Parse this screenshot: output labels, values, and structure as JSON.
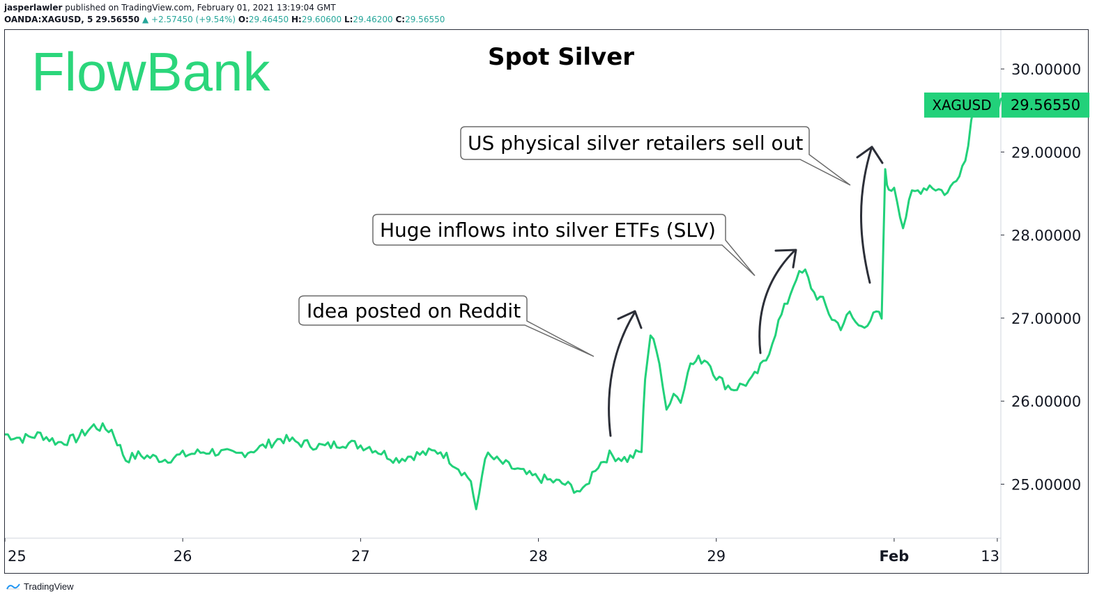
{
  "header": {
    "author": "jasperlawler",
    "published": "published on TradingView.com, February 01, 2021 13:19:04 GMT",
    "symbol": "OANDA:XAGUSD, 5",
    "last": "29.56550",
    "change": "+2.57450 (+9.54%)",
    "o_label": "O:",
    "o_value": "29.46450",
    "h_label": "H:",
    "h_value": "29.60600",
    "l_label": "L:",
    "l_value": "29.46200",
    "c_label": "C:",
    "c_value": "29.56550"
  },
  "brand": {
    "logo_text": "FlowBank",
    "logo_color": "#2bd67b"
  },
  "footer": {
    "label": "TradingView"
  },
  "colors": {
    "line": "#22d17a",
    "price_tag": "#22d17a",
    "frame": "#2a2e39",
    "annotation_border": "#555555"
  },
  "annotations": [
    {
      "text": "Idea posted on Reddit"
    },
    {
      "text": "Huge inflows into silver ETFs (SLV)"
    },
    {
      "text": "US physical silver retailers sell out"
    }
  ],
  "chart_data": {
    "type": "line",
    "title": "Spot Silver",
    "series": [
      {
        "name": "XAGUSD",
        "x": [
          25.0,
          25.1,
          25.2,
          25.3,
          25.4,
          25.5,
          25.6,
          25.68,
          25.75,
          25.9,
          26.0,
          26.15,
          26.3,
          26.45,
          26.55,
          26.65,
          26.8,
          26.9,
          27.05,
          27.2,
          27.3,
          27.45,
          27.55,
          27.62,
          27.65,
          27.7,
          27.8,
          27.95,
          28.05,
          28.15,
          28.25,
          28.32,
          28.4,
          28.5,
          28.58,
          28.6,
          28.63,
          28.68,
          28.72,
          28.76,
          28.8,
          28.84,
          28.9,
          28.95,
          29.0,
          29.05,
          29.1,
          29.2,
          29.28,
          29.35,
          29.4,
          29.45,
          29.5,
          29.55,
          29.6,
          29.65,
          29.7,
          29.75,
          29.8,
          29.85,
          29.9,
          29.93,
          29.95,
          29.97,
          30.0,
          30.05,
          30.1,
          30.2,
          30.3,
          30.4,
          30.45,
          30.5,
          30.55,
          30.6,
          30.62
        ],
        "y": [
          25.6,
          25.55,
          25.6,
          25.5,
          25.55,
          25.7,
          25.65,
          25.3,
          25.35,
          25.3,
          25.35,
          25.4,
          25.35,
          25.45,
          25.55,
          25.5,
          25.45,
          25.5,
          25.45,
          25.3,
          25.35,
          25.4,
          25.2,
          25.05,
          24.65,
          25.35,
          25.25,
          25.1,
          25.05,
          25.0,
          24.9,
          25.2,
          25.35,
          25.3,
          25.4,
          26.3,
          26.8,
          26.5,
          25.9,
          26.1,
          26.0,
          26.4,
          26.5,
          26.5,
          26.3,
          26.2,
          26.15,
          26.25,
          26.5,
          26.95,
          27.2,
          27.5,
          27.55,
          27.3,
          27.2,
          27.0,
          26.9,
          27.05,
          26.9,
          26.95,
          27.05,
          27.0,
          28.8,
          28.5,
          28.6,
          28.1,
          28.5,
          28.6,
          28.5,
          28.9,
          29.6,
          29.7,
          29.5,
          29.6,
          29.57
        ]
      }
    ],
    "x_ticks": [
      "25",
      "26",
      "27",
      "28",
      "29",
      "Feb",
      "13:0"
    ],
    "x_tick_values": [
      25,
      26,
      27,
      28,
      29,
      30,
      30.58
    ],
    "y_ticks": [
      "25.00000",
      "26.00000",
      "27.00000",
      "28.00000",
      "29.00000",
      "30.00000"
    ],
    "y_tick_values": [
      25,
      26,
      27,
      28,
      29,
      30
    ],
    "ylim": [
      24.35,
      30.47
    ],
    "xlim": [
      25.0,
      30.6
    ],
    "last_price_label": "XAGUSD",
    "last_price_value": "29.56550",
    "last_price": 29.5655,
    "grid": false
  }
}
